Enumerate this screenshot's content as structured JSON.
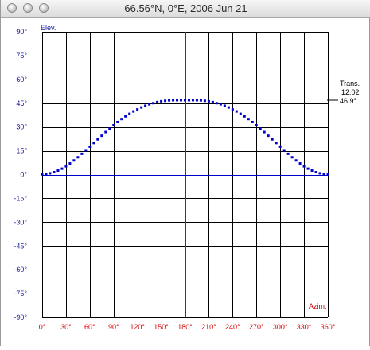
{
  "window": {
    "title": "66.56°N, 0°E, 2006 Jun 21"
  },
  "chart_data": {
    "type": "scatter",
    "xlabel": "Azim.",
    "ylabel": "Elev.",
    "xlim": [
      0,
      360
    ],
    "ylim": [
      -90,
      90
    ],
    "x_ticks": [
      "0°",
      "30°",
      "60°",
      "90°",
      "120°",
      "150°",
      "180°",
      "210°",
      "240°",
      "270°",
      "300°",
      "330°",
      "360°"
    ],
    "y_ticks": [
      "90°",
      "75°",
      "60°",
      "45°",
      "30°",
      "15°",
      "0°",
      "-15°",
      "-30°",
      "-45°",
      "-60°",
      "-75°",
      "-90°"
    ],
    "grid": true,
    "horizon_elevation": 0,
    "meridian_azimuth": 180,
    "transit": {
      "label": "Trans.",
      "time": "12:02",
      "elevation_text": "46.9°",
      "elevation": 46.9
    },
    "series": [
      {
        "color": "#0000cc",
        "x": [
          0,
          5,
          10,
          15,
          20,
          25,
          30,
          35,
          40,
          45,
          50,
          55,
          60,
          65,
          70,
          75,
          80,
          85,
          90,
          95,
          100,
          105,
          110,
          115,
          120,
          125,
          130,
          135,
          140,
          145,
          150,
          155,
          160,
          165,
          170,
          175,
          180,
          185,
          190,
          195,
          200,
          205,
          210,
          215,
          220,
          225,
          230,
          235,
          240,
          245,
          250,
          255,
          260,
          265,
          270,
          275,
          280,
          285,
          290,
          295,
          300,
          305,
          310,
          315,
          320,
          325,
          330,
          335,
          340,
          345,
          350,
          355,
          360
        ],
        "y": [
          0.1,
          0.4,
          0.8,
          1.5,
          2.5,
          3.7,
          5.2,
          7.0,
          8.9,
          10.9,
          13.1,
          15.3,
          17.6,
          19.9,
          22.2,
          24.5,
          26.8,
          29.0,
          31.1,
          33.1,
          35.0,
          36.7,
          38.3,
          39.8,
          41.1,
          42.3,
          43.4,
          44.3,
          45.0,
          45.7,
          46.2,
          46.5,
          46.8,
          46.9,
          46.9,
          46.9,
          46.9,
          46.9,
          46.9,
          46.9,
          46.8,
          46.5,
          46.2,
          45.7,
          45.0,
          44.3,
          43.4,
          42.3,
          41.1,
          39.8,
          38.3,
          36.7,
          35.0,
          33.1,
          31.1,
          29.0,
          26.8,
          24.5,
          22.2,
          19.9,
          17.6,
          15.3,
          13.1,
          10.9,
          8.9,
          7.0,
          5.2,
          3.7,
          2.5,
          1.5,
          0.8,
          0.4,
          0.1
        ]
      }
    ],
    "colors": {
      "grid": "#000000",
      "meridian": "#cc0000",
      "horizon": "#0000cc",
      "x_tick_label": "#dd0000",
      "y_tick_label": "#1a1a99",
      "data": "#0000cc"
    }
  }
}
